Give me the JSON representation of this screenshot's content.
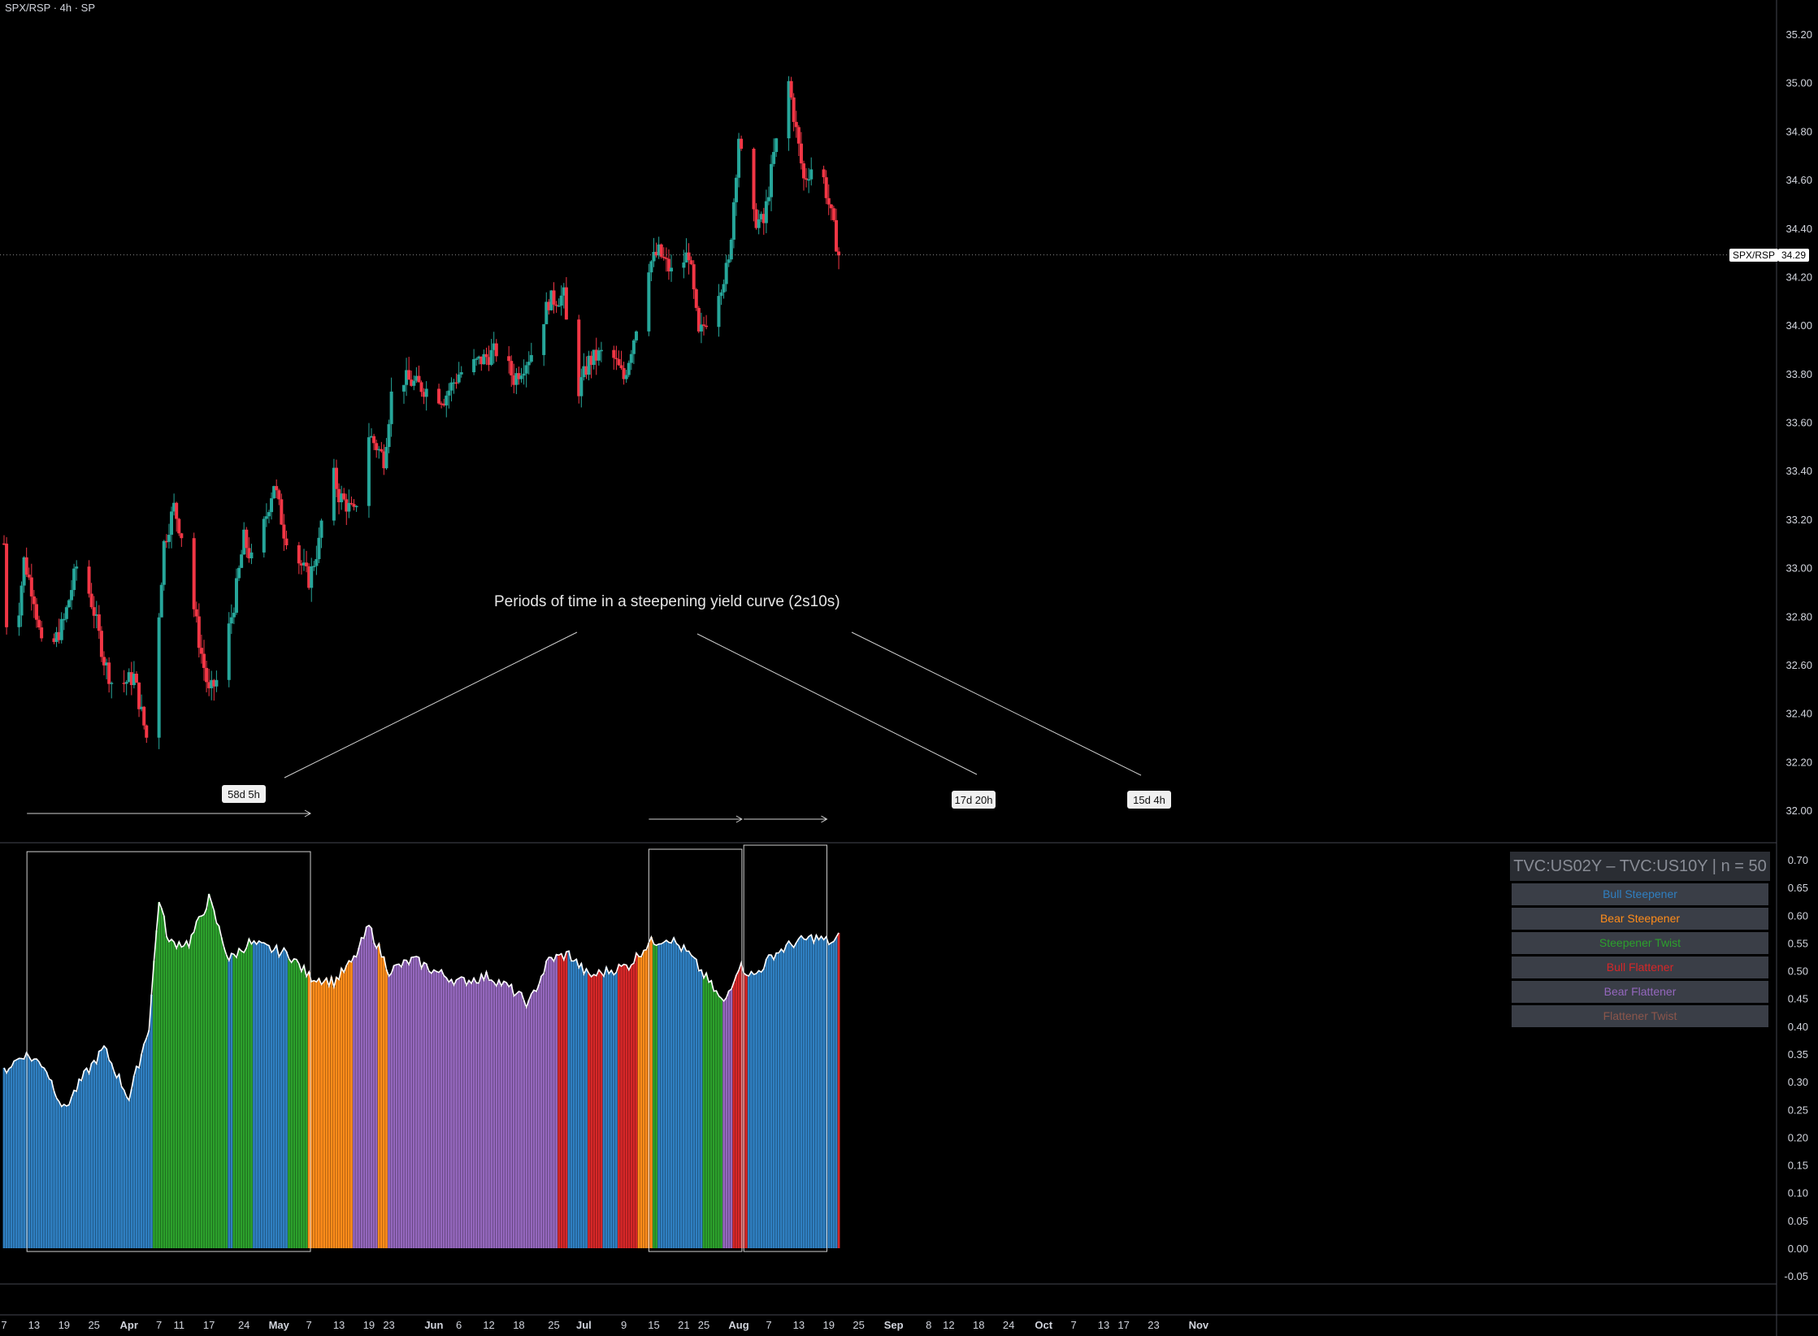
{
  "header": {
    "title": "SPX/RSP · 4h · SP"
  },
  "colors": {
    "up": "#26a69a",
    "down": "#f23645",
    "bull_steepener": "#2f7fc1",
    "bear_steepener": "#ff8c1a",
    "steepener_twist": "#2ca02c",
    "bull_flattener": "#d62728",
    "bear_flattener": "#9467bd",
    "flattener_twist": "#8c564b"
  },
  "price_tag": {
    "symbol": "SPX/RSP",
    "value": "34.29"
  },
  "annotation": {
    "text": "Periods of time in a steepening yield curve (2s10s)",
    "durations": [
      "58d 5h",
      "17d 20h",
      "15d 4h"
    ]
  },
  "legend": {
    "title": "TVC:US02Y – TVC:US10Y | n = 50",
    "items": [
      {
        "label": "Bull Steepener",
        "color": "#2f7fc1"
      },
      {
        "label": "Bear Steepener",
        "color": "#ff8c1a"
      },
      {
        "label": "Steepener Twist",
        "color": "#2ca02c"
      },
      {
        "label": "Bull Flattener",
        "color": "#d62728"
      },
      {
        "label": "Bear Flattener",
        "color": "#9467bd"
      },
      {
        "label": "Flattener Twist",
        "color": "#8c564b"
      }
    ]
  },
  "chart_data": [
    {
      "type": "candlestick",
      "title": "SPX/RSP · 4h · SP",
      "ylim": [
        31.9,
        35.3
      ],
      "y_ticks": [
        "35.20",
        "35.00",
        "34.80",
        "34.60",
        "34.40",
        "34.20",
        "34.00",
        "33.80",
        "33.60",
        "33.40",
        "33.20",
        "33.00",
        "32.80",
        "32.60",
        "32.40",
        "32.20",
        "32.00"
      ],
      "last_value": 34.29,
      "waypoints": [
        [
          "Mar 7",
          33.1
        ],
        [
          "Mar 8",
          32.45
        ],
        [
          "Mar 11",
          33.03
        ],
        [
          "Mar 13",
          32.88
        ],
        [
          "Mar 15",
          32.6
        ],
        [
          "Mar 19",
          32.78
        ],
        [
          "Mar 22",
          33.05
        ],
        [
          "Mar 25",
          32.82
        ],
        [
          "Mar 27",
          32.62
        ],
        [
          "Mar 29",
          32.5
        ],
        [
          "Apr 2",
          32.55
        ],
        [
          "Apr 5",
          32.25
        ],
        [
          "Apr 8",
          33.1
        ],
        [
          "Apr 10",
          33.25
        ],
        [
          "Apr 12",
          33.1
        ],
        [
          "Apr 15",
          32.7
        ],
        [
          "Apr 17",
          32.48
        ],
        [
          "Apr 19",
          32.55
        ],
        [
          "Apr 22",
          32.85
        ],
        [
          "Apr 24",
          33.12
        ],
        [
          "Apr 26",
          33.0
        ],
        [
          "Apr 30",
          33.35
        ],
        [
          "May 2",
          33.15
        ],
        [
          "May 7",
          32.95
        ],
        [
          "May 9",
          33.1
        ],
        [
          "May 11",
          33.45
        ],
        [
          "May 13",
          33.3
        ],
        [
          "May 16",
          33.22
        ],
        [
          "May 19",
          33.55
        ],
        [
          "May 22",
          33.45
        ],
        [
          "May 24",
          33.8
        ],
        [
          "Jun 3",
          33.7
        ],
        [
          "Jun 6",
          33.8
        ],
        [
          "Jun 10",
          33.85
        ],
        [
          "Jun 14",
          33.9
        ],
        [
          "Jun 17",
          33.78
        ],
        [
          "Jun 21",
          33.9
        ],
        [
          "Jun 24",
          34.1
        ],
        [
          "Jun 27",
          34.12
        ],
        [
          "Jun 29",
          33.68
        ],
        [
          "Jul 2",
          33.85
        ],
        [
          "Jul 6",
          33.9
        ],
        [
          "Jul 9",
          33.78
        ],
        [
          "Jul 11",
          33.95
        ],
        [
          "Jul 14",
          34.25
        ],
        [
          "Jul 16",
          34.3
        ],
        [
          "Jul 19",
          34.2
        ],
        [
          "Jul 22",
          34.3
        ],
        [
          "Jul 24",
          33.95
        ],
        [
          "Jul 27",
          34.1
        ],
        [
          "Jul 30",
          34.25
        ],
        [
          "Aug 1",
          34.78
        ],
        [
          "Aug 3",
          34.45
        ],
        [
          "Aug 6",
          34.42
        ],
        [
          "Aug 8",
          34.7
        ],
        [
          "Aug 11",
          35.0
        ],
        [
          "Aug 14",
          34.6
        ],
        [
          "Aug 17",
          34.7
        ],
        [
          "Aug 19",
          34.5
        ],
        [
          "Aug 21",
          34.29
        ]
      ]
    },
    {
      "type": "bar",
      "title": "TVC:US02Y – TVC:US10Y | n = 50",
      "ylim": [
        -0.07,
        0.72
      ],
      "y_ticks": [
        "0.70",
        "0.65",
        "0.60",
        "0.55",
        "0.50",
        "0.45",
        "0.40",
        "0.35",
        "0.30",
        "0.25",
        "0.20",
        "0.15",
        "0.10",
        "0.05",
        "0.00",
        "-0.05"
      ],
      "waypoints": [
        [
          "Mar 7",
          0.32
        ],
        [
          "Mar 11",
          0.35
        ],
        [
          "Mar 15",
          0.33
        ],
        [
          "Mar 19",
          0.25
        ],
        [
          "Mar 23",
          0.31
        ],
        [
          "Mar 27",
          0.36
        ],
        [
          "Apr 1",
          0.27
        ],
        [
          "Apr 5",
          0.4
        ],
        [
          "Apr 7",
          0.63
        ],
        [
          "Apr 9",
          0.55
        ],
        [
          "Apr 13",
          0.55
        ],
        [
          "Apr 17",
          0.63
        ],
        [
          "Apr 21",
          0.52
        ],
        [
          "Apr 25",
          0.55
        ],
        [
          "Apr 29",
          0.54
        ],
        [
          "May 3",
          0.53
        ],
        [
          "May 7",
          0.49
        ],
        [
          "May 12",
          0.48
        ],
        [
          "May 16",
          0.52
        ],
        [
          "May 19",
          0.58
        ],
        [
          "May 23",
          0.5
        ],
        [
          "May 28",
          0.52
        ],
        [
          "Jun 1",
          0.5
        ],
        [
          "Jun 6",
          0.48
        ],
        [
          "Jun 12",
          0.49
        ],
        [
          "Jun 16",
          0.47
        ],
        [
          "Jun 20",
          0.44
        ],
        [
          "Jun 24",
          0.52
        ],
        [
          "Jun 28",
          0.53
        ],
        [
          "Jul 2",
          0.49
        ],
        [
          "Jul 6",
          0.5
        ],
        [
          "Jul 10",
          0.51
        ],
        [
          "Jul 14",
          0.55
        ],
        [
          "Jul 18",
          0.56
        ],
        [
          "Jul 22",
          0.53
        ],
        [
          "Jul 26",
          0.48
        ],
        [
          "Jul 29",
          0.44
        ],
        [
          "Aug 1",
          0.51
        ],
        [
          "Aug 4",
          0.49
        ],
        [
          "Aug 8",
          0.53
        ],
        [
          "Aug 12",
          0.55
        ],
        [
          "Aug 16",
          0.56
        ],
        [
          "Aug 20",
          0.55
        ],
        [
          "Aug 21",
          0.56
        ]
      ],
      "regimes": [
        [
          "Mar 7",
          "bull_steepener"
        ],
        [
          "Apr 6",
          "steepener_twist"
        ],
        [
          "Apr 21",
          "bull_steepener"
        ],
        [
          "Apr 22",
          "steepener_twist"
        ],
        [
          "Apr 26",
          "bull_steepener"
        ],
        [
          "May 3",
          "steepener_twist"
        ],
        [
          "May 7",
          "bear_steepener"
        ],
        [
          "May 16",
          "bear_flattener"
        ],
        [
          "May 21",
          "bear_steepener"
        ],
        [
          "May 23",
          "bear_flattener"
        ],
        [
          "Jun 26",
          "bull_flattener"
        ],
        [
          "Jun 28",
          "bull_steepener"
        ],
        [
          "Jul 2",
          "bull_flattener"
        ],
        [
          "Jul 5",
          "bull_steepener"
        ],
        [
          "Jul 8",
          "bull_flattener"
        ],
        [
          "Jul 12",
          "bear_steepener"
        ],
        [
          "Jul 15",
          "steepener_twist"
        ],
        [
          "Jul 16",
          "bull_steepener"
        ],
        [
          "Jul 25",
          "steepener_twist"
        ],
        [
          "Jul 29",
          "bear_flattener"
        ],
        [
          "Jul 31",
          "bull_flattener"
        ],
        [
          "Aug 3",
          "bull_steepener"
        ],
        [
          "Aug 21",
          "bull_flattener"
        ]
      ],
      "highlight_periods": [
        [
          "Mar 8",
          "May 6"
        ],
        [
          "Jul 14",
          "Jul 31"
        ],
        [
          "Aug 2",
          "Aug 17"
        ]
      ]
    }
  ],
  "x_axis": {
    "ticks": [
      {
        "label": "7",
        "date": "Mar 7"
      },
      {
        "label": "13",
        "date": "Mar 13"
      },
      {
        "label": "19",
        "date": "Mar 19"
      },
      {
        "label": "25",
        "date": "Mar 25"
      },
      {
        "label": "Apr",
        "date": "Apr 1",
        "major": true
      },
      {
        "label": "7",
        "date": "Apr 7"
      },
      {
        "label": "11",
        "date": "Apr 11"
      },
      {
        "label": "17",
        "date": "Apr 17"
      },
      {
        "label": "24",
        "date": "Apr 24"
      },
      {
        "label": "May",
        "date": "May 1",
        "major": true
      },
      {
        "label": "7",
        "date": "May 7"
      },
      {
        "label": "13",
        "date": "May 13"
      },
      {
        "label": "19",
        "date": "May 19"
      },
      {
        "label": "23",
        "date": "May 23"
      },
      {
        "label": "Jun",
        "date": "Jun 1",
        "major": true
      },
      {
        "label": "6",
        "date": "Jun 6"
      },
      {
        "label": "12",
        "date": "Jun 12"
      },
      {
        "label": "18",
        "date": "Jun 18"
      },
      {
        "label": "25",
        "date": "Jun 25"
      },
      {
        "label": "Jul",
        "date": "Jul 1",
        "major": true
      },
      {
        "label": "9",
        "date": "Jul 9"
      },
      {
        "label": "15",
        "date": "Jul 15"
      },
      {
        "label": "21",
        "date": "Jul 21"
      },
      {
        "label": "25",
        "date": "Jul 25"
      },
      {
        "label": "Aug",
        "date": "Aug 1",
        "major": true
      },
      {
        "label": "7",
        "date": "Aug 7"
      },
      {
        "label": "13",
        "date": "Aug 13"
      },
      {
        "label": "19",
        "date": "Aug 19"
      },
      {
        "label": "25",
        "date": "Aug 25"
      },
      {
        "label": "Sep",
        "date": "Sep 1",
        "major": true
      },
      {
        "label": "8",
        "date": "Sep 8"
      },
      {
        "label": "12",
        "date": "Sep 12"
      },
      {
        "label": "18",
        "date": "Sep 18"
      },
      {
        "label": "24",
        "date": "Sep 24"
      },
      {
        "label": "Oct",
        "date": "Oct 1",
        "major": true
      },
      {
        "label": "7",
        "date": "Oct 7"
      },
      {
        "label": "13",
        "date": "Oct 13"
      },
      {
        "label": "17",
        "date": "Oct 17"
      },
      {
        "label": "23",
        "date": "Oct 23"
      },
      {
        "label": "Nov",
        "date": "Nov 1",
        "major": true
      }
    ]
  }
}
